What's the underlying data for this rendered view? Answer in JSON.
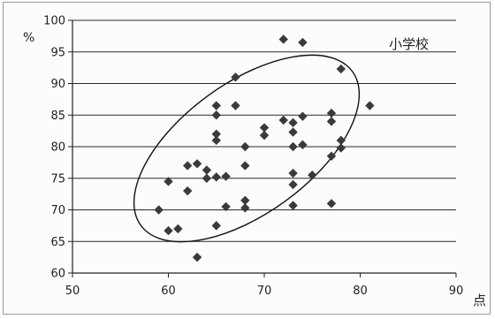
{
  "chart_data": {
    "type": "scatter",
    "title": "",
    "annotation": "小学校",
    "xlabel": "点",
    "ylabel": "%",
    "xlim": [
      50,
      90
    ],
    "ylim": [
      60,
      100
    ],
    "xticks": [
      "50",
      "60",
      "70",
      "80",
      "90"
    ],
    "yticks": [
      "60",
      "65",
      "70",
      "75",
      "80",
      "85",
      "90",
      "95",
      "100"
    ],
    "grid": "horizontal",
    "marker": "diamond",
    "marker_color": "#3a3a3a",
    "ellipse": true,
    "points": [
      {
        "x": 59,
        "y": 70
      },
      {
        "x": 60,
        "y": 74.5
      },
      {
        "x": 60,
        "y": 66.7
      },
      {
        "x": 61,
        "y": 67
      },
      {
        "x": 62,
        "y": 77
      },
      {
        "x": 62,
        "y": 73
      },
      {
        "x": 63,
        "y": 62.5
      },
      {
        "x": 63,
        "y": 77.3
      },
      {
        "x": 64,
        "y": 76.3
      },
      {
        "x": 64,
        "y": 75
      },
      {
        "x": 65,
        "y": 86.5
      },
      {
        "x": 65,
        "y": 85
      },
      {
        "x": 65,
        "y": 82
      },
      {
        "x": 65,
        "y": 81
      },
      {
        "x": 65,
        "y": 75.2
      },
      {
        "x": 65,
        "y": 67.5
      },
      {
        "x": 66,
        "y": 75.3
      },
      {
        "x": 66,
        "y": 70.5
      },
      {
        "x": 67,
        "y": 91
      },
      {
        "x": 67,
        "y": 86.5
      },
      {
        "x": 68,
        "y": 80
      },
      {
        "x": 68,
        "y": 77
      },
      {
        "x": 68,
        "y": 71.5
      },
      {
        "x": 68,
        "y": 70.3
      },
      {
        "x": 70,
        "y": 83
      },
      {
        "x": 70,
        "y": 81.8
      },
      {
        "x": 72,
        "y": 97
      },
      {
        "x": 72,
        "y": 84.2
      },
      {
        "x": 73,
        "y": 83.8
      },
      {
        "x": 73,
        "y": 82.3
      },
      {
        "x": 73,
        "y": 80
      },
      {
        "x": 73,
        "y": 75.8
      },
      {
        "x": 73,
        "y": 74
      },
      {
        "x": 73,
        "y": 70.7
      },
      {
        "x": 74,
        "y": 96.5
      },
      {
        "x": 74,
        "y": 84.8
      },
      {
        "x": 74,
        "y": 80.3
      },
      {
        "x": 75,
        "y": 75.5
      },
      {
        "x": 77,
        "y": 85.3
      },
      {
        "x": 77,
        "y": 84
      },
      {
        "x": 77,
        "y": 78.5
      },
      {
        "x": 77,
        "y": 71
      },
      {
        "x": 78,
        "y": 92.3
      },
      {
        "x": 78,
        "y": 81
      },
      {
        "x": 78,
        "y": 79.8
      },
      {
        "x": 81,
        "y": 86.5
      }
    ]
  }
}
